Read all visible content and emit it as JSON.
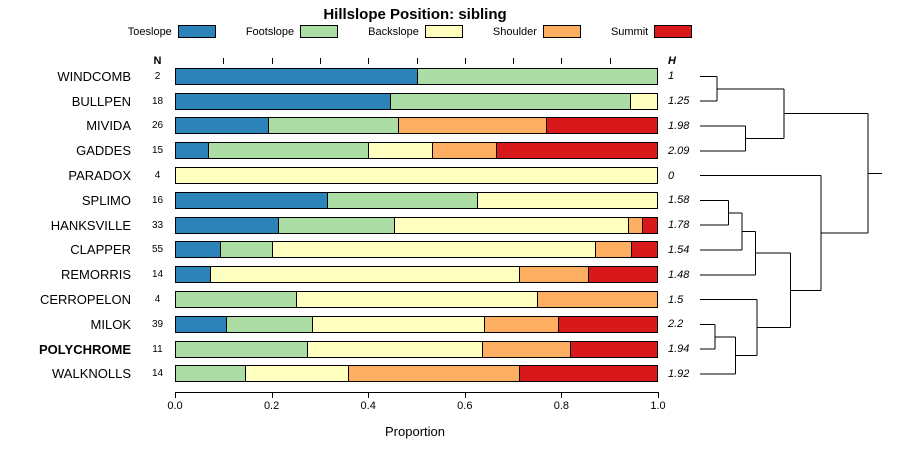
{
  "title": "Hillslope Position: sibling",
  "headers": {
    "n": "N",
    "h": "H"
  },
  "axis": {
    "xlabel": "Proportion",
    "ticks": [
      {
        "label": "0.0",
        "value": 0.0
      },
      {
        "label": "0.2",
        "value": 0.2
      },
      {
        "label": "0.4",
        "value": 0.4
      },
      {
        "label": "0.6",
        "value": 0.6
      },
      {
        "label": "0.8",
        "value": 0.8
      },
      {
        "label": "1.0",
        "value": 1.0
      }
    ],
    "top_ticks": [
      0.1,
      0.2,
      0.3,
      0.4,
      0.5,
      0.6,
      0.7,
      0.8,
      0.9
    ]
  },
  "legend": [
    {
      "label": "Toeslope",
      "color": "#2B83BA"
    },
    {
      "label": "Footslope",
      "color": "#ABDDA4"
    },
    {
      "label": "Backslope",
      "color": "#FFFFBF"
    },
    {
      "label": "Shoulder",
      "color": "#FDAE61"
    },
    {
      "label": "Summit",
      "color": "#D7191C"
    }
  ],
  "chart_data": {
    "type": "bar",
    "stacked": true,
    "orientation": "horizontal",
    "title": "Hillslope Position: sibling",
    "xlabel": "Proportion",
    "xlim": [
      0,
      1
    ],
    "grid": false,
    "legend_position": "top",
    "categories": [
      "Toeslope",
      "Footslope",
      "Backslope",
      "Shoulder",
      "Summit"
    ],
    "colors": [
      "#2B83BA",
      "#ABDDA4",
      "#FFFFBF",
      "#FDAE61",
      "#D7191C"
    ],
    "rows": [
      {
        "name": "WINDCOMB",
        "n": 2,
        "h": "1",
        "bold": false,
        "values": [
          0.5,
          0.5,
          0.0,
          0.0,
          0.0
        ]
      },
      {
        "name": "BULLPEN",
        "n": 18,
        "h": "1.25",
        "bold": false,
        "values": [
          0.444,
          0.5,
          0.056,
          0.0,
          0.0
        ]
      },
      {
        "name": "MIVIDA",
        "n": 26,
        "h": "1.98",
        "bold": false,
        "values": [
          0.192,
          0.269,
          0.0,
          0.308,
          0.231
        ]
      },
      {
        "name": "GADDES",
        "n": 15,
        "h": "2.09",
        "bold": false,
        "values": [
          0.067,
          0.333,
          0.133,
          0.133,
          0.334
        ]
      },
      {
        "name": "PARADOX",
        "n": 4,
        "h": "0",
        "bold": false,
        "values": [
          0.0,
          0.0,
          1.0,
          0.0,
          0.0
        ]
      },
      {
        "name": "SPLIMO",
        "n": 16,
        "h": "1.58",
        "bold": false,
        "values": [
          0.313,
          0.312,
          0.375,
          0.0,
          0.0
        ]
      },
      {
        "name": "HANKSVILLE",
        "n": 33,
        "h": "1.78",
        "bold": false,
        "values": [
          0.212,
          0.242,
          0.485,
          0.03,
          0.031
        ]
      },
      {
        "name": "CLAPPER",
        "n": 55,
        "h": "1.54",
        "bold": false,
        "values": [
          0.091,
          0.109,
          0.672,
          0.073,
          0.055
        ]
      },
      {
        "name": "REMORRIS",
        "n": 14,
        "h": "1.48",
        "bold": false,
        "values": [
          0.071,
          0.0,
          0.643,
          0.143,
          0.143
        ]
      },
      {
        "name": "CERROPELON",
        "n": 4,
        "h": "1.5",
        "bold": false,
        "values": [
          0.0,
          0.25,
          0.5,
          0.25,
          0.0
        ]
      },
      {
        "name": "MILOK",
        "n": 39,
        "h": "2.2",
        "bold": false,
        "values": [
          0.103,
          0.179,
          0.359,
          0.154,
          0.205
        ]
      },
      {
        "name": "POLYCHROME",
        "n": 11,
        "h": "1.94",
        "bold": true,
        "values": [
          0.0,
          0.273,
          0.364,
          0.182,
          0.181
        ]
      },
      {
        "name": "WALKNOLLS",
        "n": 14,
        "h": "1.92",
        "bold": false,
        "values": [
          0.0,
          0.143,
          0.214,
          0.357,
          0.286
        ]
      }
    ],
    "dendrogram": {
      "merges": [
        {
          "a": {
            "leaf": 0
          },
          "b": {
            "leaf": 1
          },
          "d": 0.1
        },
        {
          "a": {
            "leaf": 2
          },
          "b": {
            "leaf": 3
          },
          "d": 0.27
        },
        {
          "a": {
            "merge": 0
          },
          "b": {
            "merge": 1
          },
          "d": 0.5
        },
        {
          "a": {
            "leaf": 5
          },
          "b": {
            "leaf": 6
          },
          "d": 0.17
        },
        {
          "a": {
            "merge": 3
          },
          "b": {
            "leaf": 7
          },
          "d": 0.25
        },
        {
          "a": {
            "merge": 4
          },
          "b": {
            "leaf": 8
          },
          "d": 0.33
        },
        {
          "a": {
            "leaf": 10
          },
          "b": {
            "leaf": 11
          },
          "d": 0.09
        },
        {
          "a": {
            "merge": 6
          },
          "b": {
            "leaf": 12
          },
          "d": 0.21
        },
        {
          "a": {
            "leaf": 9
          },
          "b": {
            "merge": 7
          },
          "d": 0.34
        },
        {
          "a": {
            "merge": 5
          },
          "b": {
            "merge": 8
          },
          "d": 0.54
        },
        {
          "a": {
            "leaf": 4
          },
          "b": {
            "merge": 9
          },
          "d": 0.72
        },
        {
          "a": {
            "merge": 2
          },
          "b": {
            "merge": 10
          },
          "d": 1.0
        }
      ]
    }
  }
}
